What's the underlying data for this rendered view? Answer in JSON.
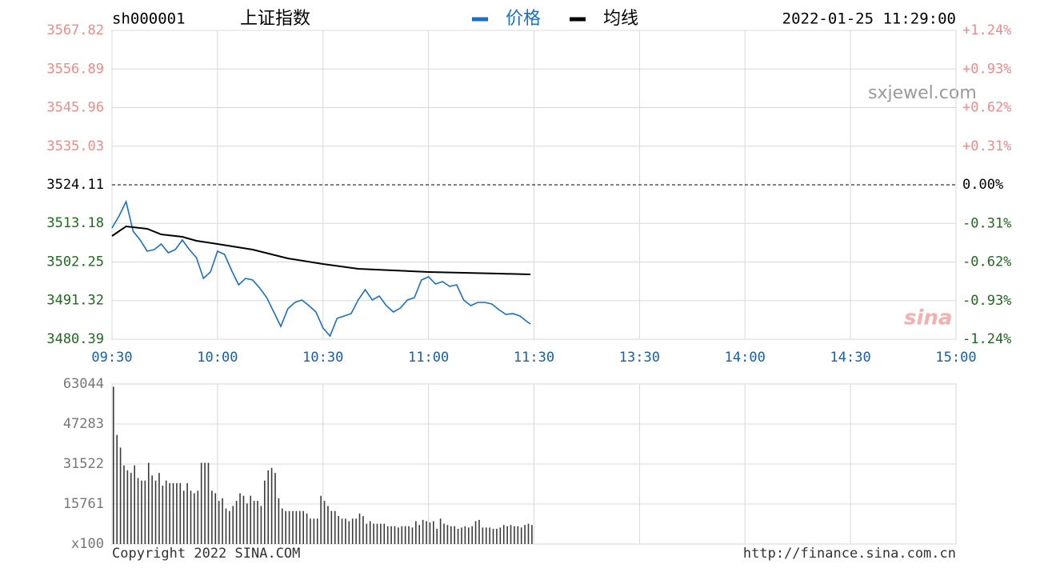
{
  "header": {
    "symbol": "sh000001",
    "name": "上证指数",
    "datetime": "2022-01-25 11:29:00"
  },
  "watermarks": [
    "sxjewel.com",
    "sina"
  ],
  "footer": {
    "copyright": "Copyright 2022 SINA.COM",
    "url": "http://finance.sina.com.cn"
  },
  "chart_data": [
    {
      "type": "line",
      "x": [
        0,
        2,
        4,
        6,
        8,
        10,
        12,
        14,
        16,
        18,
        20,
        22,
        24,
        26,
        28,
        30,
        32,
        34,
        36,
        38,
        40,
        42,
        44,
        46,
        48,
        50,
        52,
        54,
        56,
        58,
        60,
        62,
        64,
        66,
        68,
        70,
        72,
        74,
        76,
        78,
        80,
        82,
        84,
        86,
        88,
        90,
        92,
        94,
        96,
        98,
        100,
        102,
        104,
        106,
        108,
        110,
        112,
        114,
        116,
        118,
        119
      ],
      "series": [
        {
          "name": "价格",
          "color": "#1a6fc4",
          "values": [
            3511.87,
            3515.27,
            3519.35,
            3510.97,
            3508.48,
            3505.31,
            3505.76,
            3507.34,
            3504.85,
            3505.76,
            3508.48,
            3505.76,
            3503.49,
            3497.61,
            3499.42,
            3505.31,
            3504.4,
            3499.87,
            3495.79,
            3497.61,
            3497.15,
            3494.89,
            3492.17,
            3488.09,
            3484.01,
            3489.0,
            3490.81,
            3491.49,
            3489.9,
            3488.09,
            3483.56,
            3481.3,
            3486.28,
            3486.96,
            3487.64,
            3491.49,
            3494.43,
            3491.49,
            3492.62,
            3489.9,
            3488.09,
            3489.22,
            3491.49,
            3492.17,
            3497.15,
            3498.06,
            3496.02,
            3496.7,
            3495.34,
            3495.79,
            3491.49,
            3489.9,
            3490.81,
            3490.81,
            3490.36,
            3488.77,
            3487.41,
            3487.64,
            3486.96,
            3485.37,
            3484.69
          ]
        },
        {
          "name": "均线",
          "color": "#000000",
          "x": [
            0,
            4,
            10,
            14,
            20,
            24,
            30,
            40,
            50,
            60,
            70,
            80,
            90,
            100,
            110,
            119
          ],
          "values": [
            3509.61,
            3512.33,
            3511.65,
            3510.06,
            3509.38,
            3508.25,
            3507.34,
            3505.76,
            3503.27,
            3501.68,
            3500.32,
            3499.87,
            3499.42,
            3499.19,
            3498.96,
            3498.74
          ]
        }
      ],
      "xlim": [
        0,
        240
      ],
      "xticks": [
        {
          "value": 0,
          "label": "09:30"
        },
        {
          "value": 30,
          "label": "10:00"
        },
        {
          "value": 60,
          "label": "10:30"
        },
        {
          "value": 90,
          "label": "11:00"
        },
        {
          "value": 120,
          "label": "11:30"
        },
        {
          "value": 150,
          "label": "13:30"
        },
        {
          "value": 180,
          "label": "14:00"
        },
        {
          "value": 210,
          "label": "14:30"
        },
        {
          "value": 240,
          "label": "15:00"
        }
      ],
      "ylim": [
        3480.39,
        3567.82
      ],
      "yticks": [
        3480.39,
        3491.32,
        3502.25,
        3513.18,
        3524.11,
        3535.03,
        3545.96,
        3556.89,
        3567.82
      ],
      "y2lim": [
        -1.24,
        1.24
      ],
      "y2ticks": [
        {
          "value": -1.24,
          "label": "-1.24%"
        },
        {
          "value": -0.93,
          "label": "-0.93%"
        },
        {
          "value": -0.62,
          "label": "-0.62%"
        },
        {
          "value": -0.31,
          "label": "-0.31%"
        },
        {
          "value": 0,
          "label": "0.00%"
        },
        {
          "value": 0.31,
          "label": "+0.31%"
        },
        {
          "value": 0.62,
          "label": "+0.62%"
        },
        {
          "value": 0.93,
          "label": "+0.93%"
        },
        {
          "value": 1.24,
          "label": "+1.24%"
        }
      ],
      "baseline": 3524.11,
      "grid": true,
      "up_color": "#f08a8a",
      "down_color": "#1d6b1d"
    },
    {
      "type": "bar",
      "x": [
        0,
        1,
        2,
        3,
        4,
        5,
        6,
        7,
        8,
        9,
        10,
        11,
        12,
        13,
        14,
        15,
        16,
        17,
        18,
        19,
        20,
        21,
        22,
        23,
        24,
        25,
        26,
        27,
        28,
        29,
        30,
        31,
        32,
        33,
        34,
        35,
        36,
        37,
        38,
        39,
        40,
        41,
        42,
        43,
        44,
        45,
        46,
        47,
        48,
        49,
        50,
        51,
        52,
        53,
        54,
        55,
        56,
        57,
        58,
        59,
        60,
        61,
        62,
        63,
        64,
        65,
        66,
        67,
        68,
        69,
        70,
        71,
        72,
        73,
        74,
        75,
        76,
        77,
        78,
        79,
        80,
        81,
        82,
        83,
        84,
        85,
        86,
        87,
        88,
        89,
        90,
        91,
        92,
        93,
        94,
        95,
        96,
        97,
        98,
        99,
        100,
        101,
        102,
        103,
        104,
        105,
        106,
        107,
        108,
        109,
        110,
        111,
        112,
        113,
        114,
        115,
        116,
        117,
        118,
        119
      ],
      "values": [
        62000,
        43000,
        38000,
        31000,
        29000,
        28000,
        31000,
        26000,
        25000,
        25000,
        32000,
        27000,
        25000,
        28000,
        23000,
        25000,
        24000,
        24000,
        24000,
        24000,
        21000,
        24000,
        21000,
        20000,
        21000,
        32000,
        32000,
        32000,
        21000,
        20000,
        17000,
        18000,
        14000,
        13000,
        15000,
        17000,
        20000,
        19000,
        16000,
        19000,
        17000,
        17000,
        15000,
        25000,
        29000,
        30000,
        28000,
        18000,
        14000,
        13000,
        13000,
        13000,
        13000,
        13000,
        13000,
        12000,
        10000,
        10000,
        10000,
        19000,
        17000,
        15000,
        13000,
        13000,
        11000,
        10000,
        10000,
        9000,
        10000,
        10000,
        12000,
        11000,
        8000,
        9000,
        8000,
        8000,
        8000,
        8000,
        7000,
        7000,
        7000,
        6500,
        7000,
        7000,
        7000,
        6500,
        9000,
        7500,
        9500,
        9000,
        8500,
        9000,
        6000,
        10000,
        8000,
        7500,
        7000,
        7000,
        6000,
        6500,
        7000,
        6500,
        7000,
        9000,
        9500,
        6500,
        6500,
        6500,
        6000,
        6000,
        6500,
        7500,
        7000,
        7500,
        7000,
        7000,
        6500,
        7500,
        8000,
        7500
      ],
      "color": "#3a3a3a",
      "xlim": [
        0,
        240
      ],
      "ylim": [
        0,
        63044
      ],
      "yticks": [
        {
          "value": 0,
          "label": "x100"
        },
        15761,
        31522,
        47283,
        63044
      ],
      "grid": true
    }
  ]
}
